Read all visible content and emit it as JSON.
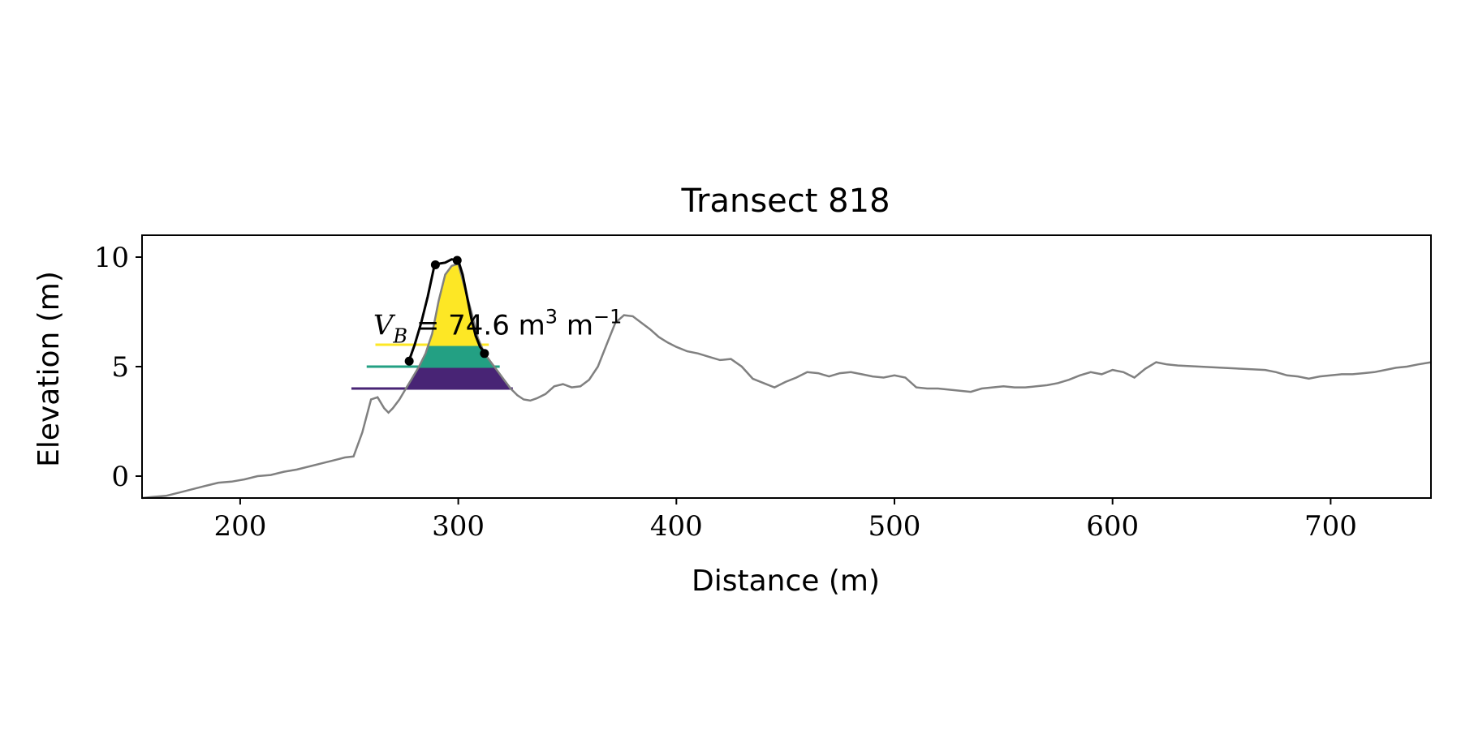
{
  "chart_data": {
    "type": "area",
    "title": "Transect 818",
    "xlabel": "Distance (m)",
    "ylabel": "Elevation (m)",
    "xlim": [
      155,
      746
    ],
    "ylim": [
      -1.0,
      11.0
    ],
    "xticks": [
      200,
      300,
      400,
      500,
      600,
      700
    ],
    "yticks": [
      0,
      5,
      10
    ],
    "grid": false,
    "annotation": {
      "symbol": "V",
      "subscript": "B",
      "text": " = 74.6 m",
      "unit_sup": "3",
      "text2": " m",
      "unit_sup2": "−1",
      "x": 261,
      "y": 6.1
    },
    "profile": {
      "color": "#808080",
      "x": [
        155,
        160,
        166,
        172,
        178,
        184,
        190,
        196,
        202,
        208,
        214,
        220,
        226,
        232,
        238,
        244,
        248,
        252,
        256,
        260,
        263,
        266,
        268,
        270,
        273,
        276,
        279,
        282,
        285,
        288,
        291,
        294,
        297,
        300,
        303,
        306,
        309,
        312,
        315,
        318,
        321,
        324,
        327,
        330,
        333,
        336,
        340,
        344,
        348,
        352,
        356,
        360,
        364,
        368,
        372,
        376,
        380,
        384,
        388,
        392,
        396,
        400,
        405,
        410,
        415,
        420,
        425,
        430,
        435,
        440,
        445,
        450,
        455,
        460,
        465,
        470,
        475,
        480,
        485,
        490,
        495,
        500,
        505,
        510,
        515,
        520,
        525,
        530,
        535,
        540,
        545,
        550,
        555,
        560,
        565,
        570,
        575,
        580,
        585,
        590,
        595,
        600,
        605,
        610,
        615,
        620,
        625,
        630,
        640,
        650,
        660,
        670,
        675,
        680,
        685,
        690,
        695,
        700,
        705,
        710,
        715,
        720,
        725,
        730,
        735,
        740,
        746
      ],
      "y": [
        -1.0,
        -0.95,
        -0.9,
        -0.75,
        -0.6,
        -0.45,
        -0.3,
        -0.25,
        -0.15,
        0.0,
        0.05,
        0.2,
        0.3,
        0.45,
        0.6,
        0.75,
        0.85,
        0.9,
        2.0,
        3.5,
        3.6,
        3.1,
        2.9,
        3.1,
        3.5,
        4.0,
        4.5,
        5.0,
        5.6,
        6.5,
        8.0,
        9.2,
        9.6,
        9.7,
        8.6,
        7.5,
        6.3,
        5.6,
        5.2,
        4.8,
        4.4,
        4.0,
        3.7,
        3.5,
        3.45,
        3.55,
        3.75,
        4.1,
        4.2,
        4.05,
        4.1,
        4.4,
        5.0,
        6.0,
        7.0,
        7.35,
        7.3,
        7.0,
        6.7,
        6.35,
        6.1,
        5.9,
        5.7,
        5.6,
        5.45,
        5.3,
        5.35,
        5.0,
        4.45,
        4.25,
        4.05,
        4.3,
        4.5,
        4.75,
        4.7,
        4.55,
        4.7,
        4.75,
        4.65,
        4.55,
        4.5,
        4.6,
        4.5,
        4.05,
        4.0,
        4.0,
        3.95,
        3.9,
        3.85,
        4.0,
        4.05,
        4.1,
        4.05,
        4.05,
        4.1,
        4.15,
        4.25,
        4.4,
        4.6,
        4.75,
        4.65,
        4.85,
        4.75,
        4.5,
        4.9,
        5.2,
        5.1,
        5.05,
        5.0,
        4.95,
        4.9,
        4.85,
        4.75,
        4.6,
        4.55,
        4.45,
        4.55,
        4.6,
        4.65,
        4.65,
        4.7,
        4.75,
        4.85,
        4.95,
        5.0,
        5.1,
        5.2
      ]
    },
    "layers": [
      {
        "name": "",
        "base": 4.0,
        "top": 5.0,
        "x_range": [
          251,
          325
        ],
        "color": "#482475"
      },
      {
        "name": "",
        "base": 5.0,
        "top": 6.0,
        "x_range": [
          258,
          319
        ],
        "color": "#23a083"
      },
      {
        "name": "",
        "base": 6.0,
        "top": 10.0,
        "x_range": [
          262,
          314
        ],
        "color": "#fde725"
      }
    ],
    "dune_outline": {
      "color": "#000000",
      "x": [
        277.5,
        280,
        283,
        286,
        289,
        291,
        294,
        297,
        300,
        302,
        304,
        306,
        308,
        310,
        312
      ],
      "y": [
        5.3,
        6.0,
        7.0,
        8.2,
        9.6,
        9.7,
        9.75,
        9.9,
        9.85,
        9.2,
        8.2,
        7.2,
        6.4,
        5.9,
        5.65
      ]
    },
    "key_points": {
      "color": "#000000",
      "x": [
        277.5,
        289.5,
        299.5,
        312.0
      ],
      "y": [
        5.25,
        9.65,
        9.85,
        5.6
      ]
    }
  }
}
